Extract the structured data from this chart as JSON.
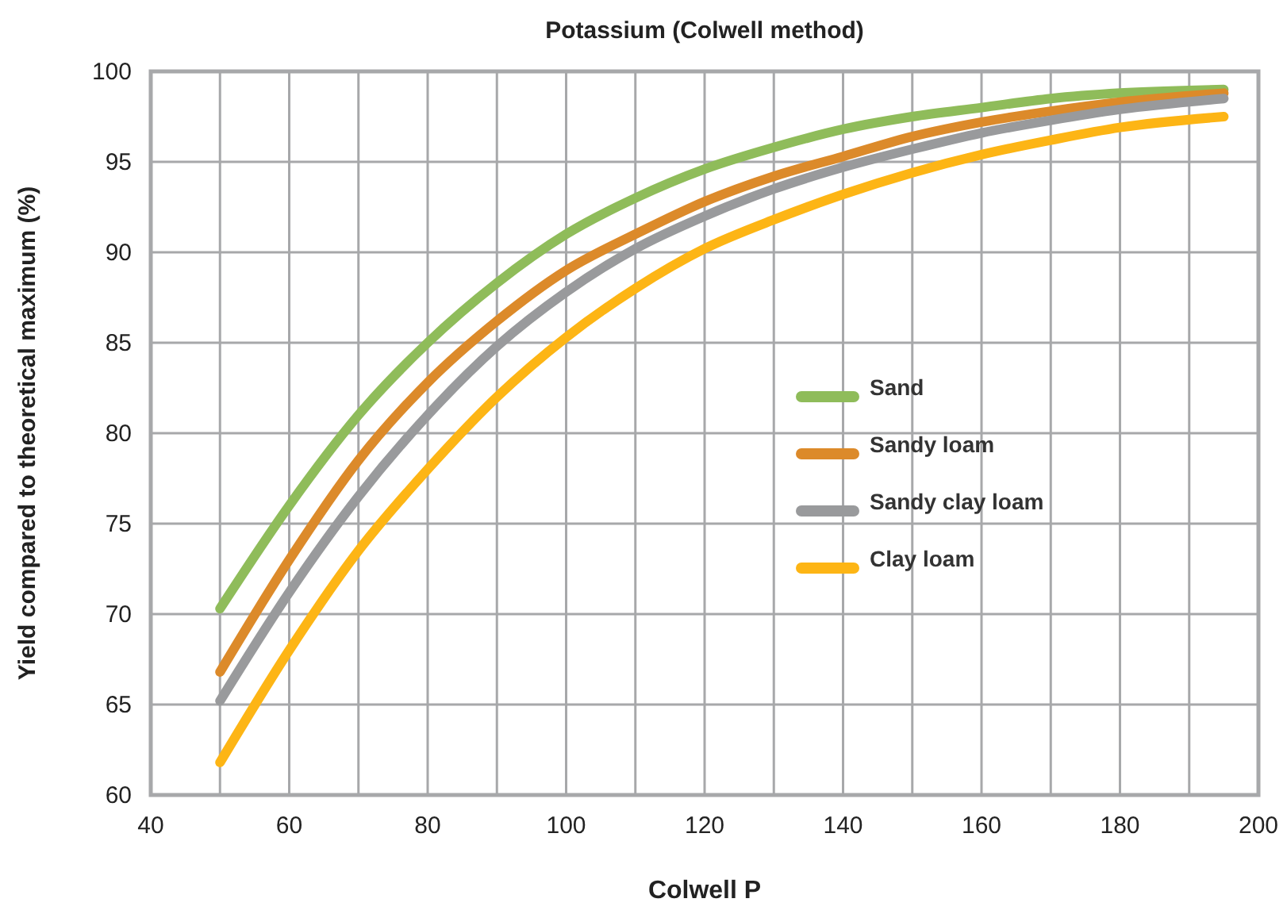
{
  "chart_data": {
    "type": "line",
    "title": "Potassium (Colwell method)",
    "xlabel": "Colwell P",
    "ylabel": "Yield compared to theoretical maximum (%)",
    "x": [
      50,
      60,
      70,
      80,
      90,
      100,
      110,
      120,
      130,
      140,
      150,
      160,
      170,
      180,
      195
    ],
    "series": [
      {
        "name": "Sand",
        "color": "#8fbc5a",
        "values": [
          70.3,
          76,
          81,
          85,
          88.3,
          91,
          93,
          94.6,
          95.8,
          96.8,
          97.5,
          98,
          98.5,
          98.8,
          99
        ]
      },
      {
        "name": "Sandy loam",
        "color": "#dc8a2a",
        "values": [
          66.8,
          73,
          78.5,
          82.8,
          86.2,
          89,
          91,
          92.8,
          94.2,
          95.3,
          96.4,
          97.2,
          97.8,
          98.3,
          98.8
        ]
      },
      {
        "name": "Sandy clay loam",
        "color": "#999a9c",
        "values": [
          65.2,
          71.2,
          76.5,
          81,
          84.8,
          87.8,
          90.2,
          92,
          93.5,
          94.7,
          95.7,
          96.6,
          97.3,
          97.9,
          98.5
        ]
      },
      {
        "name": "Clay loam",
        "color": "#fdb515",
        "values": [
          61.8,
          68,
          73.5,
          78,
          82,
          85.3,
          88,
          90.2,
          91.8,
          93.2,
          94.4,
          95.4,
          96.2,
          96.9,
          97.5
        ]
      }
    ],
    "xlim": [
      40,
      200
    ],
    "xticks": [
      40,
      60,
      80,
      100,
      120,
      140,
      160,
      180,
      200
    ],
    "ylim": [
      60,
      100
    ],
    "yticks": [
      60,
      65,
      70,
      75,
      80,
      85,
      90,
      95,
      100
    ],
    "grid": true,
    "legend": "right",
    "marker": "none",
    "line_style": "solid"
  }
}
